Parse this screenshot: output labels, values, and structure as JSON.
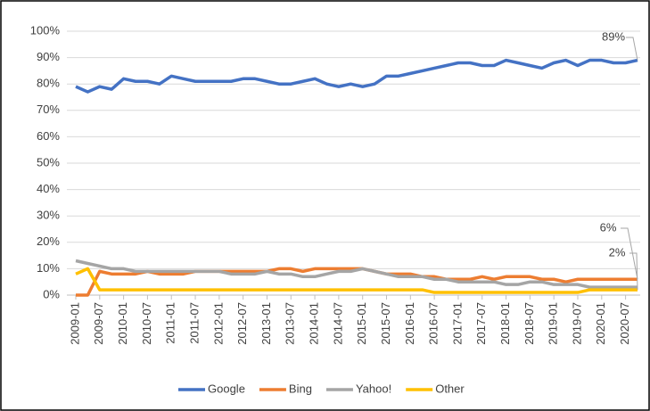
{
  "chart_data": {
    "type": "line",
    "categories": [
      "2009-01",
      null,
      "2009-07",
      null,
      "2010-01",
      null,
      "2010-07",
      null,
      "2011-01",
      null,
      "2011-07",
      null,
      "2012-01",
      null,
      "2012-07",
      null,
      "2013-01",
      null,
      "2013-07",
      null,
      "2014-01",
      null,
      "2014-07",
      null,
      "2015-01",
      null,
      "2015-07",
      null,
      "2016-01",
      null,
      "2016-07",
      null,
      "2017-01",
      null,
      "2017-07",
      null,
      "2018-01",
      null,
      "2018-07",
      null,
      "2019-01",
      null,
      "2019-07",
      null,
      "2020-01",
      null,
      "2020-07",
      null
    ],
    "series": [
      {
        "name": "Google",
        "color": "#4472c4",
        "values": [
          79,
          77,
          79,
          78,
          82,
          81,
          81,
          80,
          83,
          82,
          81,
          81,
          81,
          81,
          82,
          82,
          81,
          80,
          80,
          81,
          82,
          80,
          79,
          80,
          79,
          80,
          83,
          83,
          84,
          85,
          86,
          87,
          88,
          88,
          87,
          87,
          89,
          88,
          87,
          86,
          88,
          89,
          87,
          89,
          89,
          88,
          88,
          89
        ]
      },
      {
        "name": "Bing",
        "color": "#ed7d31",
        "values": [
          0,
          0,
          9,
          8,
          8,
          8,
          9,
          8,
          8,
          8,
          9,
          9,
          9,
          9,
          9,
          9,
          9,
          10,
          10,
          9,
          10,
          10,
          10,
          10,
          10,
          9,
          8,
          8,
          8,
          7,
          7,
          6,
          6,
          6,
          7,
          6,
          7,
          7,
          7,
          6,
          6,
          5,
          6,
          6,
          6,
          6,
          6,
          6
        ]
      },
      {
        "name": "Yahoo!",
        "color": "#a5a5a5",
        "values": [
          13,
          12,
          11,
          10,
          10,
          9,
          9,
          9,
          9,
          9,
          9,
          9,
          9,
          8,
          8,
          8,
          9,
          8,
          8,
          7,
          7,
          8,
          9,
          9,
          10,
          9,
          8,
          7,
          7,
          7,
          6,
          6,
          5,
          5,
          5,
          5,
          4,
          4,
          5,
          5,
          4,
          4,
          4,
          3,
          3,
          3,
          3,
          3
        ]
      },
      {
        "name": "Other",
        "color": "#ffc000",
        "values": [
          8,
          10,
          2,
          2,
          2,
          2,
          2,
          2,
          2,
          2,
          2,
          2,
          2,
          2,
          2,
          2,
          2,
          2,
          2,
          2,
          2,
          2,
          2,
          2,
          2,
          2,
          2,
          2,
          2,
          2,
          1,
          1,
          1,
          1,
          1,
          1,
          1,
          1,
          1,
          1,
          1,
          1,
          1,
          2,
          2,
          2,
          2,
          2
        ]
      }
    ],
    "annotations": [
      {
        "label": "89%",
        "value": 89
      },
      {
        "label": "6%",
        "value": 6
      },
      {
        "label": "2%",
        "value": 2
      }
    ],
    "ylim": [
      0,
      100
    ],
    "yticks": [
      {
        "value": 0,
        "label": "0%"
      },
      {
        "value": 10,
        "label": "10%"
      },
      {
        "value": 20,
        "label": "20%"
      },
      {
        "value": 30,
        "label": "30%"
      },
      {
        "value": 40,
        "label": "40%"
      },
      {
        "value": 50,
        "label": "50%"
      },
      {
        "value": 60,
        "label": "60%"
      },
      {
        "value": 70,
        "label": "70%"
      },
      {
        "value": 80,
        "label": "80%"
      },
      {
        "value": 90,
        "label": "90%"
      },
      {
        "value": 100,
        "label": "100%"
      }
    ],
    "grid": true,
    "legend": "bottom"
  }
}
